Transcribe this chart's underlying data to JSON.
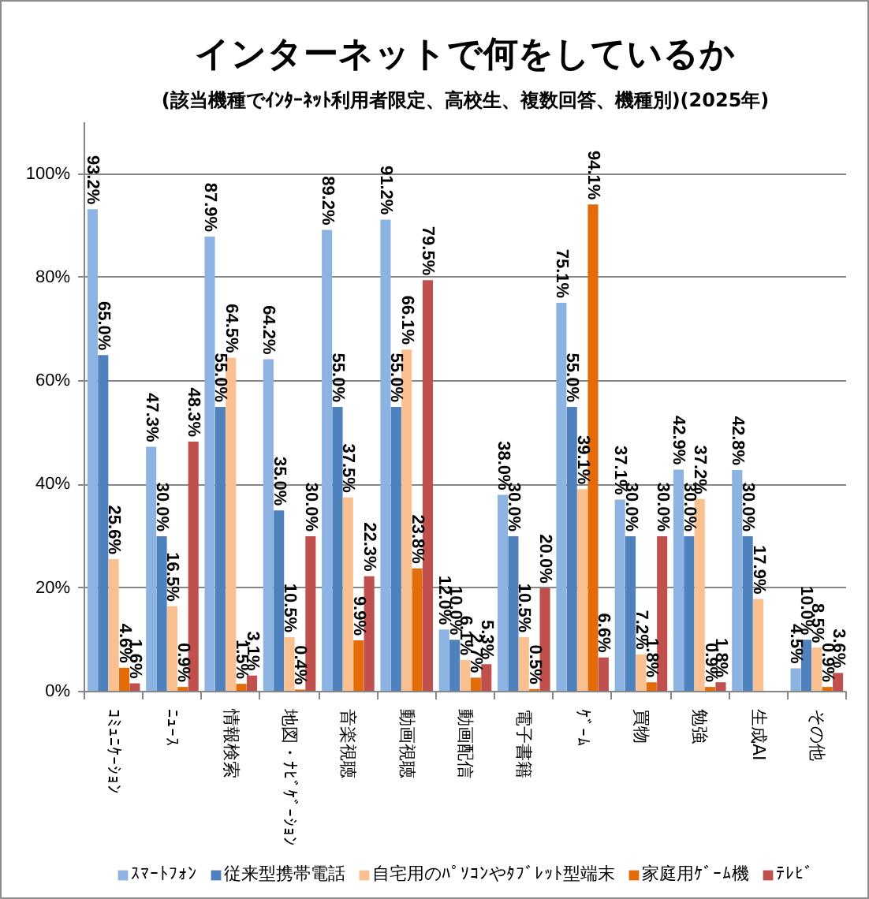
{
  "chart_data": {
    "type": "bar",
    "title": "インターネットで何をしているか",
    "subtitle": "(該当機種でｲﾝﾀｰﾈｯﾄ利用者限定、高校生、複数回答、機種別)(2025年)",
    "categories": [
      "ｺﾐｭﾆｹｰｼｮﾝ",
      "ﾆｭｰｽ",
      "情報検索",
      "地図・ﾅﾋﾞｹﾞｰｼｮﾝ",
      "音楽視聴",
      "動画視聴",
      "動画配信",
      "電子書籍",
      "ｹﾞｰﾑ",
      "買物",
      "勉強",
      "生成AI",
      "その他"
    ],
    "series": [
      {
        "name": "ｽﾏｰﾄﾌｫﾝ",
        "color": "#8db3e2",
        "values": [
          93.2,
          47.3,
          87.9,
          64.2,
          89.2,
          91.2,
          12.0,
          38.0,
          75.1,
          37.1,
          42.9,
          42.8,
          4.5
        ],
        "value_labels": [
          "93.2%",
          "47.3%",
          "87.9%",
          "64.2%",
          "89.2%",
          "91.2%",
          "12.0%",
          "38.0%",
          "75.1%",
          "37.1%",
          "42.9%",
          "42.8%",
          "4.5%"
        ]
      },
      {
        "name": "従来型携帯電話",
        "color": "#4f81bd",
        "values": [
          65.0,
          30.0,
          55.0,
          35.0,
          55.0,
          55.0,
          10.0,
          30.0,
          55.0,
          30.0,
          30.0,
          30.0,
          10.0
        ],
        "value_labels": [
          "65.0%",
          "30.0%",
          "55.0%",
          "35.0%",
          "55.0%",
          "55.0%",
          "10.0%",
          "30.0%",
          "55.0%",
          "30.0%",
          "30.0%",
          "30.0%",
          "10.0%"
        ]
      },
      {
        "name": "自宅用のﾊﾟｿｺﾝやﾀﾌﾞﾚｯﾄ型端末",
        "color": "#fac090",
        "values": [
          25.6,
          16.5,
          64.5,
          10.5,
          37.5,
          66.1,
          6.1,
          10.5,
          39.1,
          7.2,
          37.2,
          17.9,
          8.5
        ],
        "value_labels": [
          "25.6%",
          "16.5%",
          "64.5%",
          "10.5%",
          "37.5%",
          "66.1%",
          "6.1%",
          "10.5%",
          "39.1%",
          "7.2%",
          "37.2%",
          "17.9%",
          "8.5%"
        ]
      },
      {
        "name": "家庭用ｹﾞｰﾑ機",
        "color": "#e36c09",
        "values": [
          4.6,
          0.9,
          1.5,
          0.4,
          9.9,
          23.8,
          2.7,
          0.5,
          94.1,
          1.8,
          0.9,
          null,
          0.9
        ],
        "value_labels": [
          "4.6%",
          "0.9%",
          "1.5%",
          "0.4%",
          "9.9%",
          "23.8%",
          "2.7%",
          "0.5%",
          "94.1%",
          "1.8%",
          "0.9%",
          null,
          "0.9%"
        ]
      },
      {
        "name": "ﾃﾚﾋﾞ",
        "color": "#c0504d",
        "values": [
          1.6,
          48.3,
          3.1,
          30.0,
          22.3,
          79.5,
          5.3,
          20.0,
          6.6,
          30.0,
          1.8,
          null,
          3.6
        ],
        "value_labels": [
          "1.6%",
          "48.3%",
          "3.1%",
          "30.0%",
          "22.3%",
          "79.5%",
          "5.3%",
          "20.0%",
          "6.6%",
          "30.0%",
          "1.8%",
          null,
          "3.6%"
        ]
      }
    ],
    "ylim": [
      0,
      110
    ],
    "yticks": [
      {
        "value": 0,
        "label": "0%"
      },
      {
        "value": 20,
        "label": "20%"
      },
      {
        "value": 40,
        "label": "40%"
      },
      {
        "value": 60,
        "label": "60%"
      },
      {
        "value": 80,
        "label": "80%"
      },
      {
        "value": 100,
        "label": "100%"
      }
    ],
    "grid": "y",
    "legend": "bottom"
  }
}
